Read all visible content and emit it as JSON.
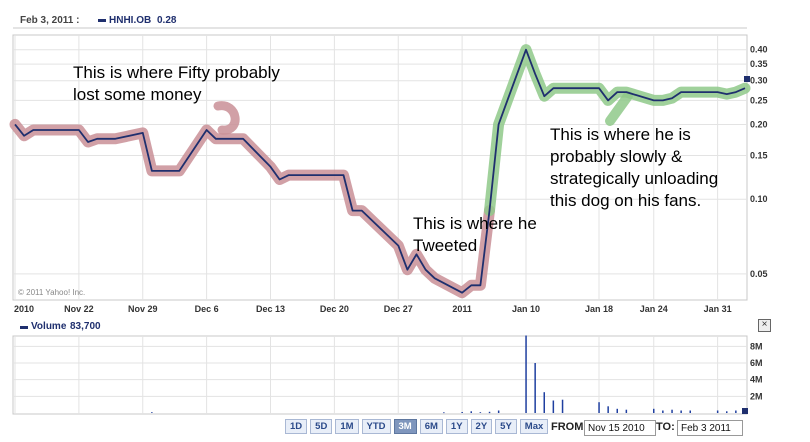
{
  "header": {
    "date": "Feb 3, 2011 :",
    "ticker_label": "HNHI.OB",
    "ticker_value": "0.28"
  },
  "volume_header": {
    "label": "Volume",
    "value": "83,700"
  },
  "copyright": "© 2011 Yahoo! Inc.",
  "annotations": {
    "fifty_loss": "This is where Fifty probably\nlost some money",
    "tweeted": "This is where he\nTweeted",
    "unloading": "This is where he is\nprobably slowly &\nstrategically unloading\nthis dog on his fans."
  },
  "range_buttons": [
    "1D",
    "5D",
    "1M",
    "YTD",
    "3M",
    "6M",
    "1Y",
    "2Y",
    "5Y",
    "Max"
  ],
  "range_active": "3M",
  "from_label": "FROM:",
  "from_value": "Nov 15 2010",
  "to_label": "TO:",
  "to_value": "Feb 3 2011",
  "close_icon": "close-icon",
  "colors": {
    "line": "#1f2f6e",
    "red_highlight": "#c98f96",
    "green_highlight": "#8fc98a",
    "grid": "#e3e3e3",
    "volume_bar": "#1f3fa0"
  },
  "chart_data": [
    {
      "type": "line",
      "title": "HNHI.OB",
      "y_scale": "log",
      "ylim": [
        0.04,
        0.45
      ],
      "y_ticks": [
        0.05,
        0.1,
        0.15,
        0.2,
        0.25,
        0.3,
        0.35,
        0.4
      ],
      "y_tick_labels": [
        "0.05",
        "0.10",
        "0.15",
        "0.20",
        "0.25",
        "0.30",
        "0.35",
        "0.40"
      ],
      "x_ticks": [
        "2010",
        "Nov 22",
        "Nov 29",
        "Dec 6",
        "Dec 13",
        "Dec 20",
        "Dec 27",
        "2011",
        "Jan 10",
        "Jan 18",
        "Jan 24",
        "Jan 31"
      ],
      "x_tick_dates": [
        "2010-11-15",
        "2010-11-22",
        "2010-11-29",
        "2010-12-06",
        "2010-12-13",
        "2010-12-20",
        "2010-12-27",
        "2011-01-03",
        "2011-01-10",
        "2011-01-18",
        "2011-01-24",
        "2011-01-31"
      ],
      "grid": true,
      "series": [
        {
          "name": "HNHI.OB",
          "x": [
            "2010-11-15",
            "2010-11-16",
            "2010-11-17",
            "2010-11-18",
            "2010-11-19",
            "2010-11-22",
            "2010-11-23",
            "2010-11-24",
            "2010-11-26",
            "2010-11-29",
            "2010-11-30",
            "2010-12-01",
            "2010-12-02",
            "2010-12-03",
            "2010-12-06",
            "2010-12-07",
            "2010-12-08",
            "2010-12-09",
            "2010-12-10",
            "2010-12-13",
            "2010-12-14",
            "2010-12-15",
            "2010-12-16",
            "2010-12-17",
            "2010-12-20",
            "2010-12-21",
            "2010-12-22",
            "2010-12-23",
            "2010-12-27",
            "2010-12-28",
            "2010-12-29",
            "2010-12-30",
            "2010-12-31",
            "2011-01-03",
            "2011-01-04",
            "2011-01-05",
            "2011-01-06",
            "2011-01-07",
            "2011-01-10",
            "2011-01-11",
            "2011-01-12",
            "2011-01-13",
            "2011-01-14",
            "2011-01-18",
            "2011-01-19",
            "2011-01-20",
            "2011-01-21",
            "2011-01-24",
            "2011-01-25",
            "2011-01-26",
            "2011-01-27",
            "2011-01-28",
            "2011-01-31",
            "2011-02-01",
            "2011-02-02",
            "2011-02-03"
          ],
          "values": [
            0.2,
            0.18,
            0.19,
            0.19,
            0.19,
            0.19,
            0.17,
            0.175,
            0.175,
            0.185,
            0.13,
            0.13,
            0.13,
            0.13,
            0.19,
            0.175,
            0.175,
            0.175,
            0.175,
            0.135,
            0.12,
            0.125,
            0.125,
            0.125,
            0.125,
            0.125,
            0.09,
            0.09,
            0.065,
            0.052,
            0.06,
            0.052,
            0.048,
            0.042,
            0.045,
            0.045,
            0.09,
            0.2,
            0.4,
            0.32,
            0.26,
            0.28,
            0.28,
            0.28,
            0.25,
            0.27,
            0.27,
            0.25,
            0.25,
            0.255,
            0.27,
            0.27,
            0.27,
            0.265,
            0.27,
            0.28
          ]
        }
      ]
    },
    {
      "type": "bar",
      "title": "Volume",
      "y_tick_labels": [
        "2M",
        "4M",
        "6M",
        "8M"
      ],
      "y_ticks": [
        2000000,
        4000000,
        6000000,
        8000000
      ],
      "ylim": [
        0,
        9000000
      ],
      "series": [
        {
          "name": "Volume",
          "x": [
            "2010-11-30",
            "2011-01-01",
            "2011-01-03",
            "2011-01-04",
            "2011-01-05",
            "2011-01-06",
            "2011-01-07",
            "2011-01-10",
            "2011-01-11",
            "2011-01-12",
            "2011-01-13",
            "2011-01-14",
            "2011-01-18",
            "2011-01-19",
            "2011-01-20",
            "2011-01-21",
            "2011-01-24",
            "2011-01-25",
            "2011-01-26",
            "2011-01-27",
            "2011-01-28",
            "2011-01-31",
            "2011-02-01",
            "2011-02-02",
            "2011-02-03"
          ],
          "values": [
            100000,
            80000,
            120000,
            200000,
            100000,
            150000,
            300000,
            9300000,
            6000000,
            2500000,
            1500000,
            1600000,
            1300000,
            800000,
            500000,
            400000,
            500000,
            300000,
            400000,
            300000,
            300000,
            300000,
            200000,
            300000,
            83700
          ]
        }
      ]
    }
  ]
}
